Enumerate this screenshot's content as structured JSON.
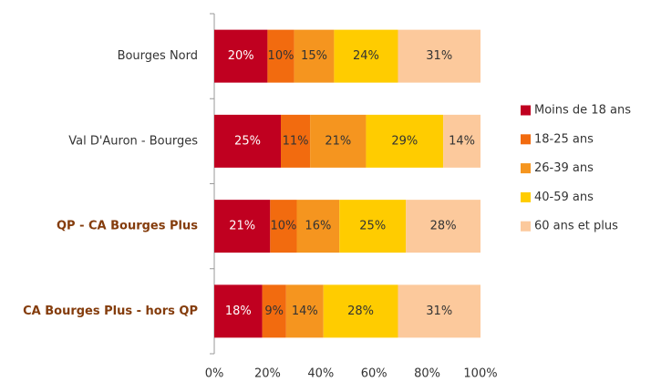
{
  "chart_data": {
    "type": "stacked-bar-horizontal",
    "categories": [
      "Bourges Nord",
      "Val D'Auron - Bourges",
      "QP - CA Bourges Plus",
      "CA Bourges Plus - hors QP"
    ],
    "category_colors": [
      "#333333",
      "#333333",
      "#843c0c",
      "#843c0c"
    ],
    "category_bold": [
      false,
      false,
      true,
      true
    ],
    "series": [
      {
        "name": "Moins de 18 ans",
        "color": "#c00020",
        "label_color": "#ffffff",
        "values": [
          20,
          25,
          21,
          18
        ],
        "value_labels": [
          "20%",
          "25%",
          "21%",
          "18%"
        ]
      },
      {
        "name": "18-25 ans",
        "color": "#f26b0f",
        "label_color": "#333333",
        "values": [
          10,
          11,
          10,
          9
        ],
        "value_labels": [
          "10%",
          "11%",
          "10%",
          "9%"
        ]
      },
      {
        "name": "26-39 ans",
        "color": "#f5951f",
        "label_color": "#333333",
        "values": [
          15,
          21,
          16,
          14
        ],
        "value_labels": [
          "15%",
          "21%",
          "16%",
          "14%"
        ]
      },
      {
        "name": "40-59 ans",
        "color": "#ffcc00",
        "label_color": "#333333",
        "values": [
          24,
          29,
          25,
          28
        ],
        "value_labels": [
          "24%",
          "29%",
          "25%",
          "28%"
        ]
      },
      {
        "name": "60 ans et plus",
        "color": "#fcc99c",
        "label_color": "#333333",
        "values": [
          31,
          14,
          28,
          31
        ],
        "value_labels": [
          "31%",
          "14%",
          "28%",
          "31%"
        ]
      }
    ],
    "xlim": [
      0,
      100
    ],
    "xticks": [
      {
        "value": 0,
        "label": "0%"
      },
      {
        "value": 20,
        "label": "20%"
      },
      {
        "value": 40,
        "label": "40%"
      },
      {
        "value": 60,
        "label": "60%"
      },
      {
        "value": 80,
        "label": "80%"
      },
      {
        "value": 100,
        "label": "100%"
      }
    ],
    "legend": "right"
  }
}
